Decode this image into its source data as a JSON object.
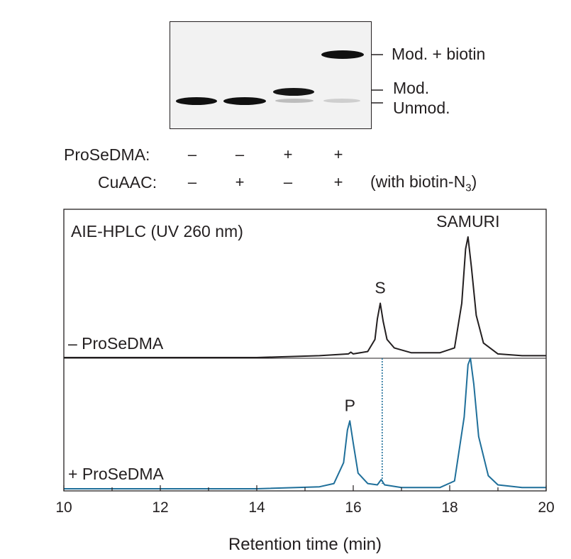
{
  "gel": {
    "band_labels": {
      "mod_biotin": "Mod. + biotin",
      "mod": "Mod.",
      "unmod": "Unmod."
    },
    "conditions": [
      {
        "label": "ProSeDMA:",
        "values": [
          "–",
          "–",
          "+",
          "+"
        ]
      },
      {
        "label": "CuAAC:",
        "values": [
          "–",
          "+",
          "–",
          "+"
        ]
      }
    ],
    "note_prefix": "(with biotin-N",
    "note_subscript": "3",
    "note_suffix": ")"
  },
  "chart_data": {
    "type": "line",
    "title": "AIE-HPLC (UV 260 nm)",
    "xlabel": "Retention time (min)",
    "ylabel": "",
    "xlim": [
      10,
      20
    ],
    "x_ticks": [
      "10",
      "12",
      "14",
      "16",
      "18",
      "20"
    ],
    "series": [
      {
        "name": "– ProSeDMA",
        "color": "#231f20",
        "x": [
          10.0,
          14.0,
          15.3,
          15.9,
          15.95,
          16.0,
          16.3,
          16.45,
          16.5,
          16.56,
          16.62,
          16.7,
          16.85,
          17.2,
          17.8,
          18.1,
          18.25,
          18.33,
          18.38,
          18.45,
          18.55,
          18.7,
          19.0,
          19.5,
          20.0
        ],
        "y": [
          0,
          0,
          0.015,
          0.03,
          0.045,
          0.03,
          0.05,
          0.15,
          0.32,
          0.45,
          0.3,
          0.15,
          0.08,
          0.04,
          0.04,
          0.08,
          0.45,
          0.9,
          1.0,
          0.75,
          0.35,
          0.12,
          0.03,
          0.015,
          0.015
        ],
        "peak_labels": [
          {
            "x": 16.56,
            "text": "S"
          },
          {
            "x": 18.38,
            "text": "SAMURI"
          }
        ]
      },
      {
        "name": "+ ProSeDMA",
        "color": "#1f6f9a",
        "x": [
          10.0,
          14.0,
          15.3,
          15.6,
          15.8,
          15.88,
          15.93,
          16.0,
          16.1,
          16.3,
          16.5,
          16.58,
          16.65,
          17.0,
          17.8,
          18.1,
          18.3,
          18.38,
          18.43,
          18.5,
          18.6,
          18.8,
          19.0,
          19.5,
          20.0
        ],
        "y": [
          0,
          0,
          0.015,
          0.04,
          0.2,
          0.45,
          0.52,
          0.35,
          0.12,
          0.04,
          0.03,
          0.07,
          0.03,
          0.01,
          0.01,
          0.06,
          0.55,
          0.95,
          1.0,
          0.8,
          0.4,
          0.1,
          0.03,
          0.01,
          0.01
        ],
        "peak_labels": [
          {
            "x": 15.93,
            "text": "P"
          }
        ]
      }
    ],
    "marker_line_x": 16.6,
    "grid": false,
    "legend": "none"
  }
}
